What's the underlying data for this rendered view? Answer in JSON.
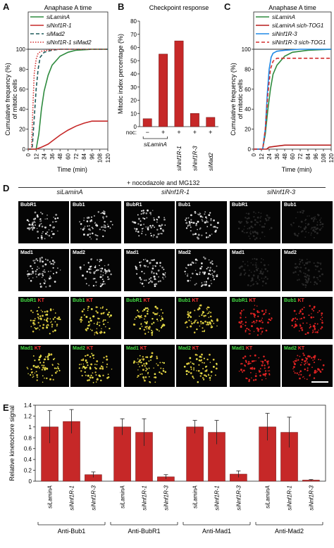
{
  "panels": {
    "A": {
      "letter": "A",
      "title": "Anaphase A time",
      "ylabel": "Cumulative frequency (%)\nof mitotic cells",
      "xlabel": "Time (min)",
      "legend": [
        "siLaminA",
        "siNnf1R-1",
        "siMad2",
        "siNnf1R-1 siMad2"
      ]
    },
    "B": {
      "letter": "B",
      "title": "Checkpoint response",
      "ylabel": "Mitotic index percentage (%)",
      "noc_label": "noc:",
      "noc_marks": [
        "−",
        "+",
        "+",
        "+",
        "+"
      ],
      "group_label": "siLaminA",
      "xlabels": [
        "siNnf1R-1",
        "siNnf1R-3",
        "siMad2"
      ]
    },
    "C": {
      "letter": "C",
      "title": "Anaphase A time",
      "ylabel": "Cumulative frequency (%)\nof mitotic cells",
      "xlabel": "Time (min)",
      "legend": [
        "siLaminA",
        "siLaminA sich-TOG1",
        "siNnf1R-3",
        "siNnf1R-3 sich-TOG1"
      ]
    },
    "D": {
      "letter": "D",
      "header": "+ nocodazole and MG132",
      "columns": [
        "siLaminA",
        "siNnf1R-1",
        "siNnf1R-3"
      ],
      "row_labels": [
        [
          "BubR1",
          "Bub1"
        ],
        [
          "Mad1",
          "Mad2"
        ],
        [
          "BubR1",
          "Bub1"
        ],
        [
          "Mad1",
          "Mad2"
        ]
      ],
      "kt_label": "KT"
    },
    "E": {
      "letter": "E",
      "ylabel": "Relative kinetochore signal",
      "groups": [
        "Anti-Bub1",
        "Anti-BubR1",
        "Anti-Mad1",
        "Anti-Mad2"
      ],
      "bar_labels": [
        "siLaminA",
        "siNnf1R-1",
        "siNnf1R-3"
      ]
    }
  },
  "chart_data": [
    {
      "type": "line",
      "panel": "A",
      "title": "Anaphase A time",
      "xlabel": "Time (min)",
      "ylabel": "Cumulative frequency (%) of mitotic cells",
      "xlim": [
        0,
        120
      ],
      "ylim": [
        0,
        100
      ],
      "xticks": [
        0,
        12,
        24,
        36,
        48,
        60,
        72,
        84,
        96,
        108,
        120
      ],
      "yticks": [
        0,
        20,
        40,
        60,
        80,
        100
      ],
      "series": [
        {
          "name": "siLaminA",
          "color": "#2e8b3e",
          "dash": "solid",
          "x": [
            0,
            12,
            16,
            20,
            24,
            30,
            36,
            48,
            60,
            72,
            96,
            120
          ],
          "y": [
            0,
            0,
            15,
            40,
            58,
            74,
            84,
            93,
            97,
            99,
            100,
            100
          ]
        },
        {
          "name": "siNnf1R-1",
          "color": "#c62828",
          "dash": "solid",
          "x": [
            0,
            12,
            20,
            30,
            36,
            48,
            60,
            72,
            84,
            96,
            108,
            120
          ],
          "y": [
            0,
            0,
            2,
            5,
            8,
            14,
            19,
            23,
            26,
            28,
            28,
            28
          ]
        },
        {
          "name": "siMad2",
          "color": "#1f5c5c",
          "dash": "dashed",
          "x": [
            0,
            6,
            9,
            12,
            15,
            18,
            24,
            36,
            48,
            72,
            120
          ],
          "y": [
            0,
            0,
            30,
            60,
            80,
            92,
            97,
            99,
            100,
            100,
            100
          ]
        },
        {
          "name": "siNnf1R-1 siMad2",
          "color": "#d32f2f",
          "dash": "dotted",
          "x": [
            0,
            5,
            7,
            9,
            12,
            15,
            20,
            30,
            48,
            120
          ],
          "y": [
            0,
            0,
            40,
            75,
            90,
            96,
            98,
            99,
            100,
            100
          ]
        }
      ]
    },
    {
      "type": "bar",
      "panel": "B",
      "title": "Checkpoint response",
      "ylabel": "Mitotic index percentage (%)",
      "ylim": [
        0,
        80
      ],
      "yticks": [
        0,
        10,
        20,
        30,
        40,
        50,
        60,
        70,
        80
      ],
      "categories": [
        "siLaminA −noc",
        "siLaminA +noc",
        "siNnf1R-1 +noc",
        "siNnf1R-3 +noc",
        "siMad2 +noc"
      ],
      "values": [
        6,
        55,
        65,
        10,
        7
      ],
      "color": "#c62828"
    },
    {
      "type": "line",
      "panel": "C",
      "title": "Anaphase A time",
      "xlabel": "Time (min)",
      "ylabel": "Cumulative frequency (%) of mitotic cells",
      "xlim": [
        0,
        120
      ],
      "ylim": [
        0,
        100
      ],
      "xticks": [
        0,
        12,
        24,
        36,
        48,
        60,
        72,
        84,
        96,
        108,
        120
      ],
      "yticks": [
        0,
        20,
        40,
        60,
        80,
        100
      ],
      "series": [
        {
          "name": "siLaminA",
          "color": "#2e8b3e",
          "dash": "solid",
          "x": [
            0,
            14,
            18,
            22,
            26,
            30,
            36,
            48,
            60,
            84,
            120
          ],
          "y": [
            0,
            0,
            15,
            40,
            60,
            75,
            84,
            93,
            97,
            99,
            100
          ]
        },
        {
          "name": "siLaminA sich-TOG1",
          "color": "#b71c1c",
          "dash": "solid",
          "x": [
            0,
            20,
            24,
            36,
            48,
            60,
            72,
            96,
            120
          ],
          "y": [
            0,
            0,
            2,
            3,
            4,
            4,
            4,
            4,
            4
          ]
        },
        {
          "name": "siNnf1R-3",
          "color": "#1e88e5",
          "dash": "solid",
          "x": [
            0,
            14,
            18,
            21,
            24,
            27,
            30,
            36,
            48,
            72,
            120
          ],
          "y": [
            0,
            0,
            20,
            55,
            80,
            92,
            96,
            98,
            99,
            100,
            100
          ]
        },
        {
          "name": "siNnf1R-3 sich-TOG1",
          "color": "#d32f2f",
          "dash": "dashed",
          "x": [
            0,
            14,
            18,
            22,
            26,
            30,
            36,
            48,
            72,
            120
          ],
          "y": [
            0,
            0,
            20,
            55,
            80,
            88,
            91,
            91,
            91,
            91
          ]
        }
      ]
    },
    {
      "type": "bar",
      "panel": "E",
      "ylabel": "Relative kinetochore signal",
      "ylim": [
        0,
        1.4
      ],
      "yticks": [
        0,
        0.2,
        0.4,
        0.6,
        0.8,
        1,
        1.2,
        1.4
      ],
      "categories": [
        "Anti-Bub1",
        "Anti-BubR1",
        "Anti-Mad1",
        "Anti-Mad2"
      ],
      "series": [
        {
          "name": "siLaminA",
          "values": [
            1.0,
            1.0,
            1.0,
            1.0
          ],
          "errors": [
            0.3,
            0.15,
            0.12,
            0.25
          ]
        },
        {
          "name": "siNnf1R-1",
          "values": [
            1.1,
            0.9,
            0.9,
            0.9
          ],
          "errors": [
            0.22,
            0.25,
            0.22,
            0.28
          ]
        },
        {
          "name": "siNnf1R-3",
          "values": [
            0.12,
            0.08,
            0.13,
            0.02
          ],
          "errors": [
            0.05,
            0.04,
            0.06,
            0.01
          ]
        }
      ],
      "color": "#c62828"
    }
  ]
}
